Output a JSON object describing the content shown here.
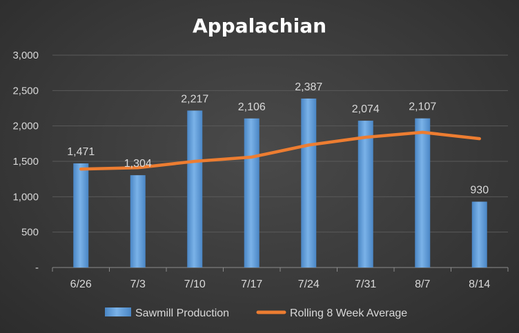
{
  "chart_data": {
    "type": "bar",
    "title": "Appalachian",
    "xlabel": "",
    "ylabel": "",
    "categories": [
      "6/26",
      "7/3",
      "7/10",
      "7/17",
      "7/24",
      "7/31",
      "8/7",
      "8/14"
    ],
    "ylim": [
      0,
      3000
    ],
    "yticks": [
      0,
      500,
      1000,
      1500,
      2000,
      2500,
      3000
    ],
    "ytick_labels": [
      "-",
      "500",
      "1,000",
      "1,500",
      "2,000",
      "2,500",
      "3,000"
    ],
    "series": [
      {
        "name": "Sawmill Production",
        "type": "bar",
        "values": [
          1471,
          1304,
          2217,
          2106,
          2387,
          2074,
          2107,
          930
        ],
        "labels": [
          "1,471",
          "1,304",
          "2,217",
          "2,106",
          "2,387",
          "2,074",
          "2,107",
          "930"
        ],
        "color": "#5b9bd5"
      },
      {
        "name": "Rolling 8 Week Average",
        "type": "line",
        "values": [
          1390,
          1410,
          1500,
          1560,
          1730,
          1840,
          1910,
          1820
        ],
        "color": "#ed7d31"
      }
    ],
    "grid": true,
    "legend": "bottom"
  }
}
